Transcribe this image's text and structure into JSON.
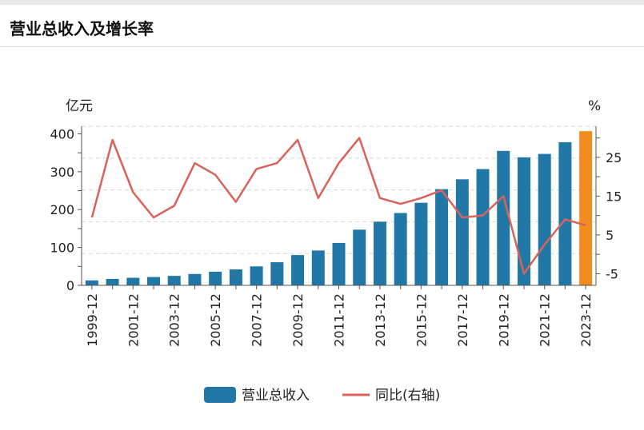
{
  "page": {
    "title": "营业总收入及增长率"
  },
  "chart_data": {
    "type": "bar+line",
    "title": "营业总收入及增长率",
    "left_unit": "亿元",
    "right_unit": "%",
    "left_axis": {
      "min": 0,
      "max": 420,
      "ticks": [
        0,
        100,
        200,
        300,
        400
      ]
    },
    "right_axis": {
      "min": -8,
      "max": 33,
      "ticks": [
        -5,
        5,
        15,
        25
      ]
    },
    "categories": [
      "1999-12",
      "2000-12",
      "2001-12",
      "2002-12",
      "2003-12",
      "2004-12",
      "2005-12",
      "2006-12",
      "2007-12",
      "2008-12",
      "2009-12",
      "2010-12",
      "2011-12",
      "2012-12",
      "2013-12",
      "2014-12",
      "2015-12",
      "2016-12",
      "2017-12",
      "2018-12",
      "2019-12",
      "2020-12",
      "2021-12",
      "2022-12",
      "2023-12"
    ],
    "x_tick_labels": [
      "1999-12",
      "2001-12",
      "2003-12",
      "2005-12",
      "2007-12",
      "2009-12",
      "2011-12",
      "2013-12",
      "2015-12",
      "2017-12",
      "2019-12",
      "2021-12",
      "2023-12"
    ],
    "series": [
      {
        "name": "营业总收入",
        "type": "bar",
        "axis": "left",
        "color": "#2177a6",
        "highlight_color": "#f28c1e",
        "values": [
          13,
          17,
          20,
          22,
          25,
          30,
          36,
          42,
          50,
          61,
          80,
          92,
          112,
          147,
          168,
          191,
          218,
          254,
          280,
          307,
          355,
          338,
          347,
          378,
          407
        ]
      },
      {
        "name": "同比(右轴)",
        "type": "line",
        "axis": "right",
        "color": "#d9625b",
        "values": [
          9.5,
          29.5,
          16.0,
          9.5,
          12.5,
          23.5,
          20.5,
          13.5,
          22.0,
          23.5,
          29.5,
          14.5,
          23.5,
          30.0,
          14.5,
          13.0,
          14.5,
          16.5,
          9.5,
          10.0,
          15.0,
          -5.0,
          2.5,
          9.0,
          7.5
        ]
      }
    ],
    "legend": {
      "position": "bottom-center",
      "items": [
        "营业总收入",
        "同比(右轴)"
      ]
    }
  }
}
